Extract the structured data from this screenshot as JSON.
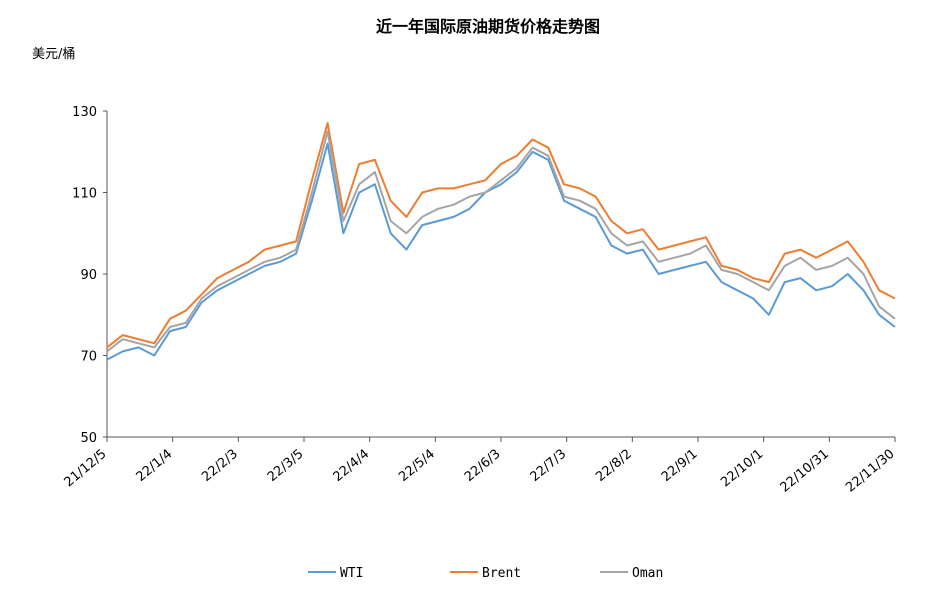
{
  "chart_data": {
    "type": "line",
    "title": "近一年国际原油期货价格走势图",
    "ylabel": "美元/桶",
    "xlabel": "",
    "ylim": [
      50,
      130
    ],
    "yticks": [
      50,
      70,
      90,
      110,
      130
    ],
    "x_tick_labels": [
      "21/12/5",
      "22/1/4",
      "22/2/3",
      "22/3/5",
      "22/4/4",
      "22/5/4",
      "22/6/3",
      "22/7/3",
      "22/8/2",
      "22/9/1",
      "22/10/1",
      "22/10/31",
      "22/11/30"
    ],
    "x": [
      "21/12/5",
      "21/12/12",
      "21/12/19",
      "21/12/26",
      "22/1/4",
      "22/1/11",
      "22/1/18",
      "22/1/25",
      "22/2/3",
      "22/2/10",
      "22/2/17",
      "22/2/24",
      "22/3/1",
      "22/3/5",
      "22/3/8",
      "22/3/12",
      "22/3/19",
      "22/3/26",
      "22/4/4",
      "22/4/11",
      "22/4/18",
      "22/4/25",
      "22/5/4",
      "22/5/11",
      "22/5/18",
      "22/5/25",
      "22/6/3",
      "22/6/10",
      "22/6/17",
      "22/6/24",
      "22/7/3",
      "22/7/10",
      "22/7/17",
      "22/7/24",
      "22/8/2",
      "22/8/9",
      "22/8/16",
      "22/8/23",
      "22/9/1",
      "22/9/8",
      "22/9/15",
      "22/9/22",
      "22/10/1",
      "22/10/8",
      "22/10/15",
      "22/10/22",
      "22/10/31",
      "22/11/7",
      "22/11/14",
      "22/11/21",
      "22/11/30"
    ],
    "series": [
      {
        "name": "WTI",
        "color": "#5b9bd5",
        "values": [
          69,
          71,
          72,
          70,
          76,
          77,
          83,
          86,
          88,
          90,
          92,
          93,
          95,
          108,
          122,
          100,
          110,
          112,
          100,
          96,
          102,
          103,
          104,
          106,
          110,
          112,
          115,
          120,
          118,
          108,
          106,
          104,
          97,
          95,
          96,
          90,
          91,
          92,
          93,
          88,
          86,
          84,
          80,
          88,
          89,
          86,
          87,
          90,
          86,
          80,
          77
        ]
      },
      {
        "name": "Brent",
        "color": "#ed7d31",
        "values": [
          72,
          75,
          74,
          73,
          79,
          81,
          85,
          89,
          91,
          93,
          96,
          97,
          98,
          113,
          127,
          105,
          117,
          118,
          108,
          104,
          110,
          111,
          111,
          112,
          113,
          117,
          119,
          123,
          121,
          112,
          111,
          109,
          103,
          100,
          101,
          96,
          97,
          98,
          99,
          92,
          91,
          89,
          88,
          95,
          96,
          94,
          96,
          98,
          93,
          86,
          84
        ]
      },
      {
        "name": "Oman",
        "color": "#a5a5a5",
        "values": [
          71,
          74,
          73,
          72,
          77,
          78,
          84,
          87,
          89,
          91,
          93,
          94,
          96,
          110,
          125,
          103,
          112,
          115,
          103,
          100,
          104,
          106,
          107,
          109,
          110,
          113,
          116,
          121,
          119,
          109,
          108,
          106,
          100,
          97,
          98,
          93,
          94,
          95,
          97,
          91,
          90,
          88,
          86,
          92,
          94,
          91,
          92,
          94,
          90,
          82,
          79
        ]
      }
    ],
    "grid": false,
    "legend": "bottom"
  }
}
